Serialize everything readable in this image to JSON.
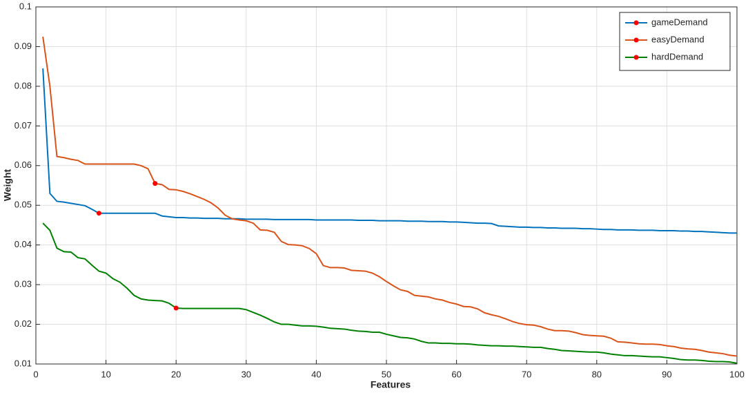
{
  "chart_data": {
    "type": "line",
    "xlabel": "Features",
    "ylabel": "Weight",
    "x": [
      1,
      2,
      3,
      4,
      5,
      6,
      7,
      8,
      9,
      10,
      11,
      12,
      13,
      14,
      15,
      16,
      17,
      18,
      19,
      20,
      21,
      22,
      23,
      24,
      25,
      26,
      27,
      28,
      29,
      30,
      31,
      32,
      33,
      34,
      35,
      36,
      37,
      38,
      39,
      40,
      41,
      42,
      43,
      44,
      45,
      46,
      47,
      48,
      49,
      50,
      51,
      52,
      53,
      54,
      55,
      56,
      57,
      58,
      59,
      60,
      61,
      62,
      63,
      64,
      65,
      66,
      67,
      68,
      69,
      70,
      71,
      72,
      73,
      74,
      75,
      76,
      77,
      78,
      79,
      80,
      81,
      82,
      83,
      84,
      85,
      86,
      87,
      88,
      89,
      90,
      91,
      92,
      93,
      94,
      95,
      96,
      97,
      98,
      99,
      100
    ],
    "series": [
      {
        "name": "gameDemand",
        "color": "#0072bd",
        "marker_x": 9,
        "values": [
          0.0845,
          0.053,
          0.051,
          0.0508,
          0.0505,
          0.0502,
          0.0499,
          0.049,
          0.048,
          0.048,
          0.048,
          0.048,
          0.048,
          0.048,
          0.048,
          0.048,
          0.048,
          0.0473,
          0.0471,
          0.0469,
          0.0469,
          0.0468,
          0.0468,
          0.0467,
          0.0467,
          0.0467,
          0.0466,
          0.0466,
          0.0466,
          0.0465,
          0.0465,
          0.0465,
          0.0465,
          0.0464,
          0.0464,
          0.0464,
          0.0464,
          0.0464,
          0.0464,
          0.0463,
          0.0463,
          0.0463,
          0.0463,
          0.0463,
          0.0463,
          0.0462,
          0.0462,
          0.0462,
          0.0461,
          0.0461,
          0.0461,
          0.0461,
          0.046,
          0.046,
          0.046,
          0.0459,
          0.0459,
          0.0459,
          0.0458,
          0.0458,
          0.0457,
          0.0456,
          0.0455,
          0.0455,
          0.0454,
          0.0448,
          0.0447,
          0.0446,
          0.0445,
          0.0445,
          0.0444,
          0.0444,
          0.0443,
          0.0443,
          0.0442,
          0.0442,
          0.0442,
          0.0441,
          0.0441,
          0.044,
          0.0439,
          0.0439,
          0.0438,
          0.0438,
          0.0438,
          0.0437,
          0.0437,
          0.0437,
          0.0436,
          0.0436,
          0.0436,
          0.0435,
          0.0435,
          0.0434,
          0.0434,
          0.0433,
          0.0432,
          0.0431,
          0.043,
          0.043
        ]
      },
      {
        "name": "easyDemand",
        "color": "#d95319",
        "marker_x": 17,
        "values": [
          0.0925,
          0.08,
          0.0623,
          0.062,
          0.0616,
          0.0613,
          0.0604,
          0.0604,
          0.0604,
          0.0604,
          0.0604,
          0.0604,
          0.0604,
          0.0604,
          0.06,
          0.0592,
          0.0555,
          0.0552,
          0.054,
          0.0539,
          0.0535,
          0.0529,
          0.0522,
          0.0515,
          0.0506,
          0.0493,
          0.0475,
          0.0466,
          0.0463,
          0.0461,
          0.0455,
          0.0438,
          0.0437,
          0.0432,
          0.0409,
          0.0401,
          0.04,
          0.0398,
          0.0391,
          0.0378,
          0.0348,
          0.0343,
          0.0343,
          0.0342,
          0.0336,
          0.0335,
          0.0334,
          0.0329,
          0.032,
          0.0308,
          0.0297,
          0.0287,
          0.0283,
          0.0273,
          0.0271,
          0.0269,
          0.0264,
          0.0261,
          0.0255,
          0.0251,
          0.0245,
          0.0244,
          0.0239,
          0.0229,
          0.0224,
          0.022,
          0.0214,
          0.0207,
          0.0202,
          0.0199,
          0.0198,
          0.0194,
          0.0188,
          0.0184,
          0.0184,
          0.0183,
          0.0179,
          0.0174,
          0.0172,
          0.0171,
          0.017,
          0.0165,
          0.0156,
          0.0155,
          0.0153,
          0.0151,
          0.015,
          0.015,
          0.0149,
          0.0146,
          0.0144,
          0.014,
          0.0138,
          0.0137,
          0.0134,
          0.013,
          0.0128,
          0.0126,
          0.0122,
          0.012
        ]
      },
      {
        "name": "hardDemand",
        "color": "#008000",
        "marker_x": 20,
        "values": [
          0.0455,
          0.0437,
          0.0392,
          0.0383,
          0.0382,
          0.0368,
          0.0365,
          0.0349,
          0.0334,
          0.0329,
          0.0315,
          0.0306,
          0.0291,
          0.0273,
          0.0264,
          0.0261,
          0.026,
          0.0259,
          0.0253,
          0.0241,
          0.024,
          0.024,
          0.024,
          0.024,
          0.024,
          0.024,
          0.024,
          0.024,
          0.024,
          0.0237,
          0.023,
          0.0223,
          0.0215,
          0.0206,
          0.02,
          0.02,
          0.0198,
          0.0196,
          0.0196,
          0.0195,
          0.0193,
          0.019,
          0.0189,
          0.0188,
          0.0185,
          0.0183,
          0.0182,
          0.018,
          0.018,
          0.0175,
          0.0171,
          0.0167,
          0.0166,
          0.0163,
          0.0157,
          0.0153,
          0.0153,
          0.0152,
          0.0152,
          0.0151,
          0.0151,
          0.015,
          0.0148,
          0.0147,
          0.0146,
          0.0146,
          0.0145,
          0.0145,
          0.0144,
          0.0143,
          0.0142,
          0.0142,
          0.0139,
          0.0137,
          0.0134,
          0.0133,
          0.0132,
          0.0131,
          0.013,
          0.013,
          0.0128,
          0.0125,
          0.0123,
          0.0121,
          0.0121,
          0.012,
          0.0119,
          0.0118,
          0.0118,
          0.0116,
          0.0114,
          0.0111,
          0.011,
          0.011,
          0.0109,
          0.0107,
          0.0106,
          0.0106,
          0.0105,
          0.0102
        ]
      }
    ],
    "marker_color": "#ff0000",
    "xlim": [
      0,
      100
    ],
    "xticks": [
      0,
      10,
      20,
      30,
      40,
      50,
      60,
      70,
      80,
      90,
      100
    ],
    "ylim": [
      0.01,
      0.1
    ],
    "yticks": [
      0.01,
      0.02,
      0.03,
      0.04,
      0.05,
      0.06,
      0.07,
      0.08,
      0.09,
      0.1
    ],
    "grid": true,
    "legend": "top-right"
  }
}
